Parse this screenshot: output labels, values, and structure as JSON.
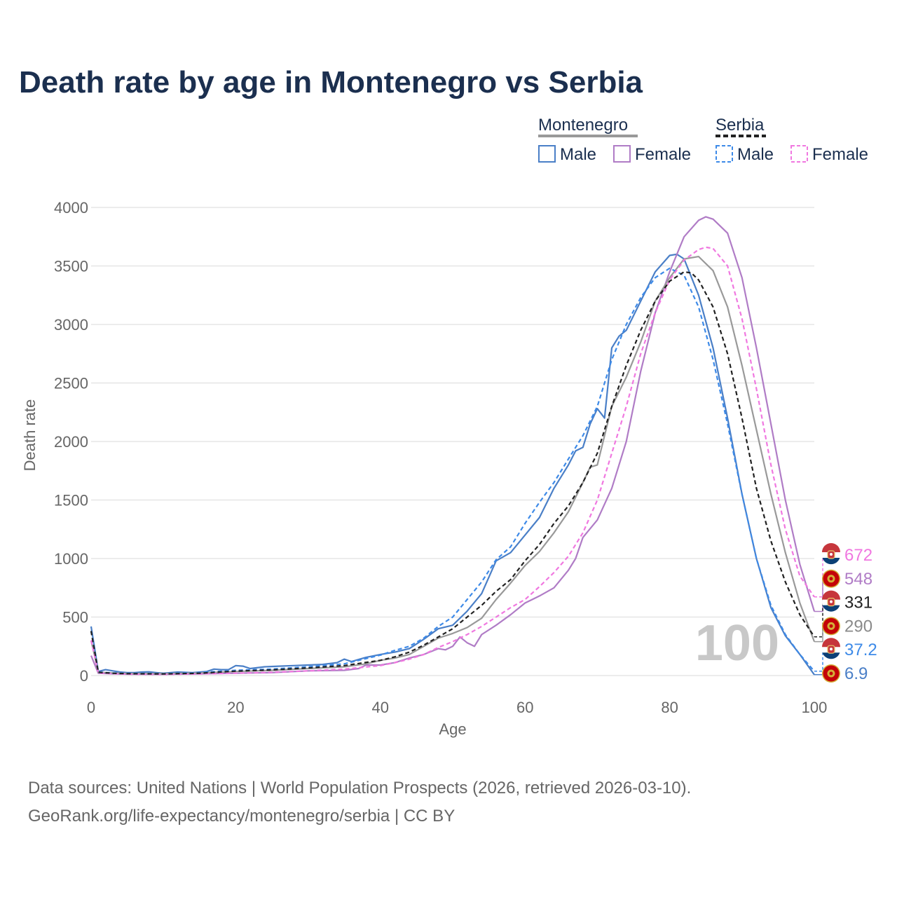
{
  "chart_data": {
    "type": "line",
    "title": "Death rate by age in Montenegro vs Serbia",
    "xlabel": "Age",
    "ylabel": "Death rate",
    "xlim": [
      0,
      100
    ],
    "ylim": [
      0,
      4000
    ],
    "xticks": [
      0,
      20,
      40,
      60,
      80,
      100
    ],
    "yticks": [
      0,
      500,
      1000,
      1500,
      2000,
      2500,
      3000,
      3500,
      4000
    ],
    "grid": true,
    "current_age_label": "100",
    "legend": {
      "position": "top-right",
      "groups": [
        {
          "name": "Montenegro",
          "items": [
            "Male",
            "Female"
          ]
        },
        {
          "name": "Serbia",
          "items": [
            "Male",
            "Female"
          ]
        }
      ]
    },
    "series": [
      {
        "name": "Montenegro Male",
        "country": "Montenegro",
        "sex": "Male",
        "color": "#4a7fc7",
        "dash": "solid",
        "end_label": "6.9",
        "points": [
          [
            0,
            420
          ],
          [
            1,
            35
          ],
          [
            2,
            50
          ],
          [
            3,
            40
          ],
          [
            4,
            30
          ],
          [
            5,
            25
          ],
          [
            6,
            25
          ],
          [
            7,
            30
          ],
          [
            8,
            32
          ],
          [
            9,
            25
          ],
          [
            10,
            20
          ],
          [
            12,
            30
          ],
          [
            14,
            25
          ],
          [
            16,
            35
          ],
          [
            17,
            55
          ],
          [
            18,
            50
          ],
          [
            19,
            50
          ],
          [
            20,
            85
          ],
          [
            21,
            80
          ],
          [
            22,
            60
          ],
          [
            24,
            75
          ],
          [
            26,
            80
          ],
          [
            28,
            85
          ],
          [
            30,
            90
          ],
          [
            32,
            95
          ],
          [
            34,
            110
          ],
          [
            35,
            140
          ],
          [
            36,
            120
          ],
          [
            38,
            155
          ],
          [
            40,
            180
          ],
          [
            42,
            200
          ],
          [
            44,
            230
          ],
          [
            46,
            310
          ],
          [
            48,
            400
          ],
          [
            50,
            430
          ],
          [
            52,
            550
          ],
          [
            54,
            700
          ],
          [
            56,
            980
          ],
          [
            58,
            1050
          ],
          [
            60,
            1200
          ],
          [
            62,
            1350
          ],
          [
            64,
            1600
          ],
          [
            66,
            1800
          ],
          [
            67,
            1920
          ],
          [
            68,
            1950
          ],
          [
            69,
            2150
          ],
          [
            70,
            2280
          ],
          [
            71,
            2200
          ],
          [
            72,
            2800
          ],
          [
            73,
            2900
          ],
          [
            74,
            2950
          ],
          [
            76,
            3200
          ],
          [
            78,
            3450
          ],
          [
            80,
            3590
          ],
          [
            81,
            3600
          ],
          [
            82,
            3560
          ],
          [
            84,
            3250
          ],
          [
            86,
            2800
          ],
          [
            88,
            2200
          ],
          [
            90,
            1550
          ],
          [
            92,
            1000
          ],
          [
            94,
            580
          ],
          [
            96,
            340
          ],
          [
            98,
            180
          ],
          [
            100,
            6.9
          ]
        ]
      },
      {
        "name": "Montenegro Female",
        "country": "Montenegro",
        "sex": "Female",
        "color": "#b07cc6",
        "dash": "solid",
        "end_label": "548",
        "points": [
          [
            0,
            170
          ],
          [
            1,
            20
          ],
          [
            3,
            15
          ],
          [
            5,
            12
          ],
          [
            10,
            10
          ],
          [
            15,
            15
          ],
          [
            20,
            20
          ],
          [
            25,
            25
          ],
          [
            30,
            40
          ],
          [
            35,
            45
          ],
          [
            37,
            60
          ],
          [
            38,
            90
          ],
          [
            40,
            90
          ],
          [
            42,
            110
          ],
          [
            44,
            150
          ],
          [
            46,
            180
          ],
          [
            48,
            230
          ],
          [
            49,
            220
          ],
          [
            50,
            250
          ],
          [
            51,
            330
          ],
          [
            52,
            280
          ],
          [
            53,
            250
          ],
          [
            54,
            350
          ],
          [
            56,
            430
          ],
          [
            58,
            520
          ],
          [
            60,
            620
          ],
          [
            62,
            680
          ],
          [
            64,
            750
          ],
          [
            66,
            900
          ],
          [
            67,
            1000
          ],
          [
            68,
            1180
          ],
          [
            70,
            1330
          ],
          [
            72,
            1600
          ],
          [
            74,
            2000
          ],
          [
            76,
            2600
          ],
          [
            78,
            3100
          ],
          [
            80,
            3450
          ],
          [
            82,
            3750
          ],
          [
            84,
            3890
          ],
          [
            85,
            3920
          ],
          [
            86,
            3900
          ],
          [
            88,
            3780
          ],
          [
            90,
            3400
          ],
          [
            92,
            2800
          ],
          [
            94,
            2150
          ],
          [
            96,
            1500
          ],
          [
            98,
            950
          ],
          [
            100,
            548
          ]
        ]
      },
      {
        "name": "Montenegro Total",
        "country": "Montenegro",
        "sex": "Total",
        "color": "#999999",
        "dash": "solid",
        "end_label": "290",
        "points": [
          [
            0,
            300
          ],
          [
            1,
            28
          ],
          [
            3,
            22
          ],
          [
            5,
            18
          ],
          [
            10,
            16
          ],
          [
            15,
            22
          ],
          [
            20,
            35
          ],
          [
            25,
            45
          ],
          [
            30,
            60
          ],
          [
            35,
            75
          ],
          [
            38,
            100
          ],
          [
            40,
            130
          ],
          [
            42,
            150
          ],
          [
            44,
            180
          ],
          [
            46,
            250
          ],
          [
            48,
            320
          ],
          [
            50,
            360
          ],
          [
            52,
            410
          ],
          [
            54,
            490
          ],
          [
            56,
            650
          ],
          [
            58,
            790
          ],
          [
            60,
            940
          ],
          [
            62,
            1060
          ],
          [
            64,
            1220
          ],
          [
            66,
            1400
          ],
          [
            68,
            1650
          ],
          [
            69,
            1780
          ],
          [
            70,
            1800
          ],
          [
            72,
            2300
          ],
          [
            74,
            2550
          ],
          [
            76,
            2850
          ],
          [
            78,
            3200
          ],
          [
            80,
            3400
          ],
          [
            82,
            3560
          ],
          [
            84,
            3580
          ],
          [
            86,
            3460
          ],
          [
            88,
            3150
          ],
          [
            90,
            2650
          ],
          [
            92,
            2100
          ],
          [
            94,
            1550
          ],
          [
            96,
            1050
          ],
          [
            98,
            620
          ],
          [
            100,
            290
          ]
        ]
      },
      {
        "name": "Serbia Male",
        "country": "Serbia",
        "sex": "Male",
        "color": "#3d8ae8",
        "dash": "dashed",
        "end_label": "37.2",
        "points": [
          [
            0,
            380
          ],
          [
            1,
            30
          ],
          [
            3,
            22
          ],
          [
            5,
            18
          ],
          [
            10,
            15
          ],
          [
            15,
            25
          ],
          [
            20,
            45
          ],
          [
            25,
            55
          ],
          [
            30,
            75
          ],
          [
            35,
            100
          ],
          [
            40,
            175
          ],
          [
            42,
            215
          ],
          [
            44,
            250
          ],
          [
            46,
            320
          ],
          [
            48,
            420
          ],
          [
            50,
            500
          ],
          [
            52,
            650
          ],
          [
            54,
            800
          ],
          [
            56,
            990
          ],
          [
            58,
            1100
          ],
          [
            60,
            1300
          ],
          [
            62,
            1480
          ],
          [
            64,
            1650
          ],
          [
            66,
            1850
          ],
          [
            68,
            2050
          ],
          [
            70,
            2300
          ],
          [
            72,
            2700
          ],
          [
            74,
            3000
          ],
          [
            76,
            3230
          ],
          [
            78,
            3400
          ],
          [
            80,
            3480
          ],
          [
            82,
            3420
          ],
          [
            84,
            3150
          ],
          [
            86,
            2700
          ],
          [
            88,
            2150
          ],
          [
            90,
            1550
          ],
          [
            92,
            1000
          ],
          [
            94,
            600
          ],
          [
            96,
            350
          ],
          [
            98,
            180
          ],
          [
            100,
            37.2
          ]
        ]
      },
      {
        "name": "Serbia Female",
        "country": "Serbia",
        "sex": "Female",
        "color": "#f078e0",
        "dash": "dashed",
        "end_label": "672",
        "points": [
          [
            0,
            300
          ],
          [
            1,
            22
          ],
          [
            3,
            16
          ],
          [
            5,
            12
          ],
          [
            10,
            10
          ],
          [
            15,
            14
          ],
          [
            20,
            20
          ],
          [
            25,
            28
          ],
          [
            30,
            40
          ],
          [
            35,
            55
          ],
          [
            40,
            85
          ],
          [
            42,
            110
          ],
          [
            44,
            140
          ],
          [
            46,
            180
          ],
          [
            48,
            240
          ],
          [
            50,
            290
          ],
          [
            52,
            350
          ],
          [
            54,
            420
          ],
          [
            56,
            500
          ],
          [
            58,
            580
          ],
          [
            60,
            650
          ],
          [
            62,
            760
          ],
          [
            64,
            880
          ],
          [
            66,
            1020
          ],
          [
            68,
            1220
          ],
          [
            70,
            1500
          ],
          [
            72,
            1900
          ],
          [
            74,
            2300
          ],
          [
            76,
            2750
          ],
          [
            78,
            3100
          ],
          [
            80,
            3380
          ],
          [
            82,
            3550
          ],
          [
            84,
            3640
          ],
          [
            85,
            3660
          ],
          [
            86,
            3650
          ],
          [
            88,
            3500
          ],
          [
            90,
            3050
          ],
          [
            92,
            2450
          ],
          [
            94,
            1800
          ],
          [
            96,
            1250
          ],
          [
            98,
            850
          ],
          [
            100,
            672
          ]
        ]
      },
      {
        "name": "Serbia Total",
        "country": "Serbia",
        "sex": "Total",
        "color": "#222222",
        "dash": "dashed",
        "end_label": "331",
        "points": [
          [
            0,
            380
          ],
          [
            1,
            28
          ],
          [
            3,
            20
          ],
          [
            5,
            16
          ],
          [
            10,
            14
          ],
          [
            15,
            20
          ],
          [
            20,
            38
          ],
          [
            25,
            48
          ],
          [
            30,
            65
          ],
          [
            35,
            85
          ],
          [
            40,
            130
          ],
          [
            42,
            160
          ],
          [
            44,
            200
          ],
          [
            46,
            260
          ],
          [
            48,
            330
          ],
          [
            50,
            400
          ],
          [
            52,
            500
          ],
          [
            54,
            600
          ],
          [
            56,
            720
          ],
          [
            58,
            820
          ],
          [
            60,
            980
          ],
          [
            62,
            1120
          ],
          [
            64,
            1300
          ],
          [
            66,
            1450
          ],
          [
            68,
            1650
          ],
          [
            70,
            1900
          ],
          [
            72,
            2300
          ],
          [
            74,
            2650
          ],
          [
            76,
            2950
          ],
          [
            78,
            3200
          ],
          [
            80,
            3370
          ],
          [
            82,
            3450
          ],
          [
            83,
            3440
          ],
          [
            84,
            3380
          ],
          [
            86,
            3150
          ],
          [
            88,
            2750
          ],
          [
            90,
            2200
          ],
          [
            92,
            1600
          ],
          [
            94,
            1150
          ],
          [
            96,
            800
          ],
          [
            98,
            520
          ],
          [
            100,
            331
          ]
        ]
      }
    ]
  },
  "legend": {
    "montenegro": {
      "title": "Montenegro",
      "male": "Male",
      "female": "Female"
    },
    "serbia": {
      "title": "Serbia",
      "male": "Male",
      "female": "Female"
    }
  },
  "source": {
    "line1": "Data sources: United Nations | World Population Prospects (2026, retrieved 2026-03-10).",
    "line2": "GeoRank.org/life-expectancy/montenegro/serbia | CC BY"
  }
}
